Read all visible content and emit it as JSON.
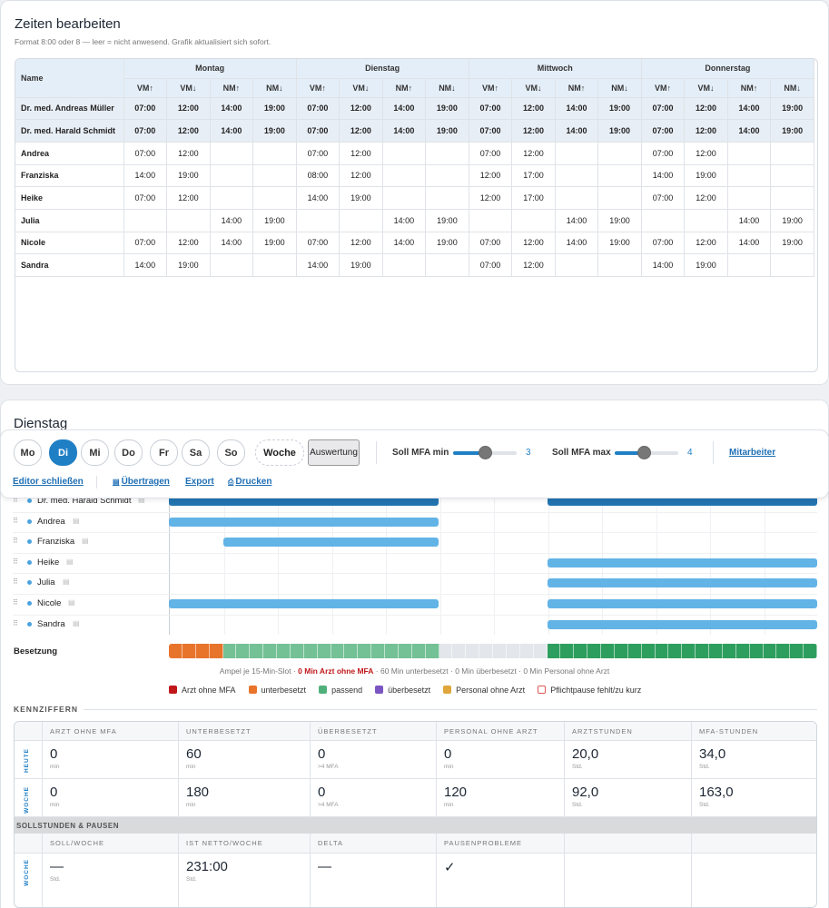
{
  "editor": {
    "title": "Zeiten bearbeiten",
    "subtitle": "Format 8:00 oder 8 — leer = nicht anwesend. Grafik aktualisiert sich sofort.",
    "name_header": "Name",
    "days": [
      "Montag",
      "Dienstag",
      "Mittwoch",
      "Donnerstag"
    ],
    "subcols": [
      "VM↑",
      "VM↓",
      "NM↑",
      "NM↓"
    ],
    "rows": [
      {
        "name": "Dr. med. Andreas Müller",
        "doc": true,
        "times": [
          "07:00",
          "12:00",
          "14:00",
          "19:00",
          "07:00",
          "12:00",
          "14:00",
          "19:00",
          "07:00",
          "12:00",
          "14:00",
          "19:00",
          "07:00",
          "12:00",
          "14:00",
          "19:00"
        ]
      },
      {
        "name": "Dr. med. Harald Schmidt",
        "doc": true,
        "times": [
          "07:00",
          "12:00",
          "14:00",
          "19:00",
          "07:00",
          "12:00",
          "14:00",
          "19:00",
          "07:00",
          "12:00",
          "14:00",
          "19:00",
          "07:00",
          "12:00",
          "14:00",
          "19:00"
        ]
      },
      {
        "name": "Andrea",
        "doc": false,
        "times": [
          "07:00",
          "12:00",
          "",
          "",
          "07:00",
          "12:00",
          "",
          "",
          "07:00",
          "12:00",
          "",
          "",
          "07:00",
          "12:00",
          "",
          ""
        ]
      },
      {
        "name": "Franziska",
        "doc": false,
        "times": [
          "14:00",
          "19:00",
          "",
          "",
          "08:00",
          "12:00",
          "",
          "",
          "12:00",
          "17:00",
          "",
          "",
          "14:00",
          "19:00",
          "",
          ""
        ]
      },
      {
        "name": "Heike",
        "doc": false,
        "times": [
          "07:00",
          "12:00",
          "",
          "",
          "14:00",
          "19:00",
          "",
          "",
          "12:00",
          "17:00",
          "",
          "",
          "07:00",
          "12:00",
          "",
          ""
        ]
      },
      {
        "name": "Julia",
        "doc": false,
        "times": [
          "",
          "",
          "14:00",
          "19:00",
          "",
          "",
          "14:00",
          "19:00",
          "",
          "",
          "14:00",
          "19:00",
          "",
          "",
          "14:00",
          "19:00"
        ]
      },
      {
        "name": "Nicole",
        "doc": false,
        "times": [
          "07:00",
          "12:00",
          "14:00",
          "19:00",
          "07:00",
          "12:00",
          "14:00",
          "19:00",
          "07:00",
          "12:00",
          "14:00",
          "19:00",
          "07:00",
          "12:00",
          "14:00",
          "19:00"
        ]
      },
      {
        "name": "Sandra",
        "doc": false,
        "times": [
          "14:00",
          "19:00",
          "",
          "",
          "14:00",
          "19:00",
          "",
          "",
          "07:00",
          "12:00",
          "",
          "",
          "14:00",
          "19:00",
          "",
          ""
        ]
      }
    ]
  },
  "day_view": {
    "title": "Dienstag",
    "day_buttons": [
      "Mo",
      "Di",
      "Mi",
      "Do",
      "Fr",
      "Sa",
      "So"
    ],
    "active_day": "Di",
    "week_button": "Woche",
    "auswertung_button": "Auswertung",
    "soll_min_label": "Soll MFA min",
    "soll_min_value": "3",
    "soll_min_fraction": 0.5,
    "soll_max_label": "Soll MFA max",
    "soll_max_value": "4",
    "soll_max_fraction": 0.45,
    "mitarbeiter_link": "Mitarbeiter",
    "editor_close": "Editor schließen",
    "uebertragen": "Übertragen",
    "export": "Export",
    "drucken": "Drucken"
  },
  "gantt": {
    "rows": [
      {
        "name": "Dr. med. Harald Schmidt",
        "doc": true,
        "bars": [
          [
            0,
            0.416
          ],
          [
            0.584,
            1.0
          ]
        ]
      },
      {
        "name": "Andrea",
        "doc": false,
        "bars": [
          [
            0,
            0.416
          ]
        ]
      },
      {
        "name": "Franziska",
        "doc": false,
        "bars": [
          [
            0.084,
            0.416
          ]
        ]
      },
      {
        "name": "Heike",
        "doc": false,
        "bars": [
          [
            0.584,
            1.0
          ]
        ]
      },
      {
        "name": "Julia",
        "doc": false,
        "bars": [
          [
            0.584,
            1.0
          ]
        ]
      },
      {
        "name": "Nicole",
        "doc": false,
        "bars": [
          [
            0,
            0.416
          ],
          [
            0.584,
            1.0
          ]
        ]
      },
      {
        "name": "Sandra",
        "doc": false,
        "bars": [
          [
            0.584,
            1.0
          ]
        ]
      }
    ],
    "besetzung_label": "Besetzung",
    "besetzung_slots": [
      "o",
      "o",
      "o",
      "o",
      "p",
      "p",
      "p",
      "p",
      "p",
      "p",
      "p",
      "p",
      "p",
      "p",
      "p",
      "p",
      "p",
      "p",
      "p",
      "p",
      "e",
      "e",
      "e",
      "e",
      "e",
      "e",
      "e",
      "e",
      "g",
      "g",
      "g",
      "g",
      "g",
      "g",
      "g",
      "g",
      "g",
      "g",
      "g",
      "g",
      "g",
      "g",
      "g",
      "g",
      "g",
      "g",
      "g",
      "g"
    ],
    "ampel_prefix": "Ampel je 15-Min-Slot ·",
    "ampel_red": "0 Min Arzt ohne MFA",
    "ampel_rest": "· 60 Min unterbesetzt · 0 Min überbesetzt · 0 Min Personal ohne Arzt",
    "legend": [
      {
        "label": "Arzt ohne MFA",
        "color": "#c0171b"
      },
      {
        "label": "unterbesetzt",
        "color": "#e8742c"
      },
      {
        "label": "passend",
        "color": "#4fb07a"
      },
      {
        "label": "überbesetzt",
        "color": "#7b55c2"
      },
      {
        "label": "Personal ohne Arzt",
        "color": "#e0a63a"
      },
      {
        "label": "Pflichtpause fehlt/zu kurz",
        "color": "#e25555"
      }
    ]
  },
  "kennziffern": {
    "section_title": "KENNZIFFERN",
    "headers": [
      "ARZT OHNE MFA",
      "UNTERBESETZT",
      "ÜBERBESETZT",
      "PERSONAL OHNE ARZT",
      "ARZTSTUNDEN",
      "MFA-STUNDEN"
    ],
    "rows": [
      {
        "label": "HEUTE",
        "cells": [
          {
            "v": "0",
            "u": "min"
          },
          {
            "v": "60",
            "u": "min"
          },
          {
            "v": "0",
            "u": ">4 MFA"
          },
          {
            "v": "0",
            "u": "min"
          },
          {
            "v": "20,0",
            "u": "Std."
          },
          {
            "v": "34,0",
            "u": "Std."
          }
        ]
      },
      {
        "label": "WOCHE",
        "cells": [
          {
            "v": "0",
            "u": "min"
          },
          {
            "v": "180",
            "u": "min"
          },
          {
            "v": "0",
            "u": ">4 MFA"
          },
          {
            "v": "120",
            "u": "min"
          },
          {
            "v": "92,0",
            "u": "Std."
          },
          {
            "v": "163,0",
            "u": "Std."
          }
        ]
      }
    ],
    "soll_section": "SOLLSTUNDEN & PAUSEN",
    "soll_headers": [
      "SOLL/WOCHE",
      "IST NETTO/WOCHE",
      "DELTA",
      "PAUSENPROBLEME",
      "",
      ""
    ],
    "soll_row": {
      "label": "WOCHE",
      "cells": [
        {
          "v": "—",
          "u": "Std."
        },
        {
          "v": "231:00",
          "u": "Std."
        },
        {
          "v": "—",
          "u": ""
        },
        {
          "v": "✓",
          "u": ""
        },
        {
          "v": "",
          "u": ""
        },
        {
          "v": "",
          "u": ""
        }
      ]
    }
  }
}
